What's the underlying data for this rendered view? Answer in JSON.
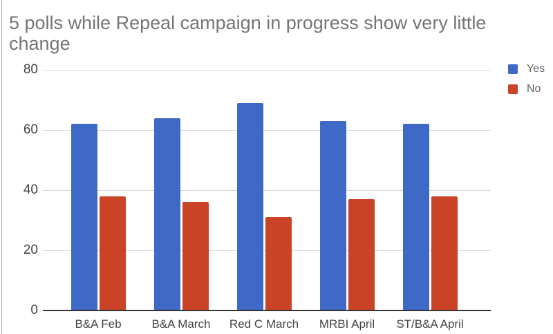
{
  "chart_data": {
    "type": "bar",
    "title": "5 polls while Repeal campaign in progress show very little change",
    "categories": [
      "B&A Feb",
      "B&A March",
      "Red C March",
      "MRBI April",
      "ST/B&A April"
    ],
    "series": [
      {
        "name": "Yes",
        "color": "#3e69c6",
        "values": [
          62,
          64,
          69,
          63,
          62
        ]
      },
      {
        "name": "No",
        "color": "#cb4327",
        "values": [
          38,
          36,
          31,
          37,
          38
        ]
      }
    ],
    "xlabel": "",
    "ylabel": "",
    "ylim": [
      0,
      80
    ],
    "yticks": [
      0,
      20,
      40,
      60,
      80
    ],
    "grid": true,
    "legend_position": "right",
    "colors": {
      "title": "#757575",
      "axis_labels": "#444444",
      "legend_text": "#616161",
      "gridline": "#d8d8d8",
      "baseline": "#333333",
      "background": "#ffffff"
    }
  }
}
